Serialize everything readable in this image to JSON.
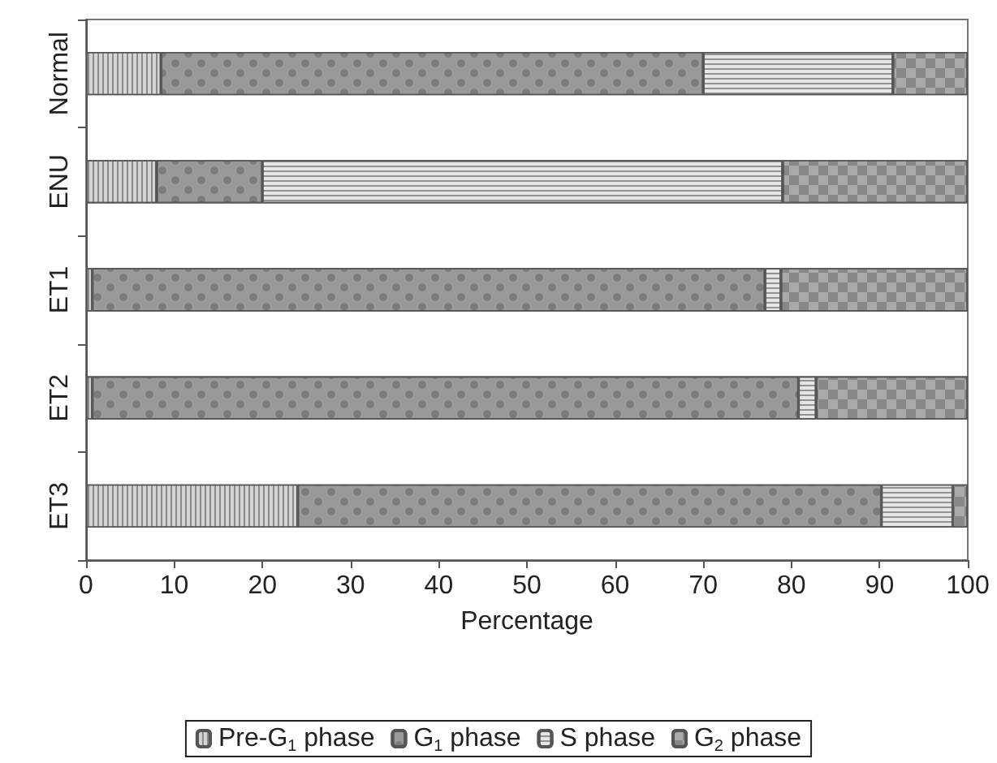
{
  "chart_data": {
    "type": "bar",
    "orientation": "horizontal",
    "stacked": true,
    "xlabel": "Percentage",
    "categories": [
      "Normal",
      "ENU",
      "ET1",
      "ET2",
      "ET3"
    ],
    "series": [
      {
        "name": "Pre-G$_{1}$ phase",
        "color": "#d4d4d4",
        "values": [
          8.5,
          8,
          0.7,
          0.7,
          24
        ]
      },
      {
        "name": "G$_{1}$ phase",
        "color": "#9a9a9a",
        "values": [
          61.5,
          12,
          76.3,
          80.1,
          66.2
        ]
      },
      {
        "name": "S phase",
        "color": "#e6e6e6",
        "values": [
          21.5,
          59,
          1.8,
          2,
          8.1
        ]
      },
      {
        "name": "G$_{2}$ phase",
        "color": "#aaaaaa",
        "values": [
          8.5,
          21,
          21.2,
          17.2,
          1.7
        ]
      }
    ],
    "xlim": [
      0,
      100
    ],
    "xticks": [
      0,
      10,
      20,
      30,
      40,
      50,
      60,
      70,
      80,
      90,
      100
    ],
    "grid": false,
    "legend": "bottom"
  }
}
